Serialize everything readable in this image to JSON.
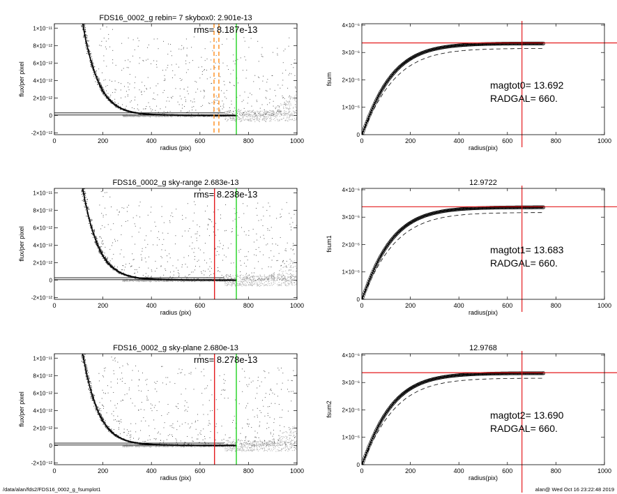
{
  "footer": {
    "path": "/data/alan/fds2/FDS16_0002_g_fsumplot1",
    "stamp": "alan@  Wed Oct 16 23:22:48 2019"
  },
  "colors": {
    "sky_line": "#ff8c1a",
    "red_line": "#e41a1c",
    "green_line": "#1fd31f",
    "profile": "#000000",
    "scatter_dark": "#333333",
    "scatter_light": "#aaaaaa"
  },
  "chart_data": [
    {
      "type": "scatter",
      "panel": "left-1",
      "title": "FDS16_0002_g rebin= 7    skybox0:  2.901e-13",
      "annotation": "rms= 8.187e-13",
      "xlabel": "radius (pix)",
      "ylabel": "flux/per pixel",
      "xlim": [
        0,
        1000
      ],
      "ylim": [
        -2.2e-12,
        1.05e-11
      ],
      "xticks": [
        0,
        200,
        400,
        600,
        800,
        1000
      ],
      "yticks": [
        {
          "value": -2e-12,
          "label": "-2×10⁻¹²"
        },
        {
          "value": 0,
          "label": "0"
        },
        {
          "value": 2e-12,
          "label": "2×10⁻¹²"
        },
        {
          "value": 4e-12,
          "label": "4×10⁻¹²"
        },
        {
          "value": 6e-12,
          "label": "6×10⁻¹²"
        },
        {
          "value": 8e-12,
          "label": "8×10⁻¹²"
        },
        {
          "value": 1e-11,
          "label": "1×10⁻¹¹"
        }
      ],
      "profile": {
        "x": [
          120,
          140,
          160,
          180,
          200,
          230,
          260,
          300,
          350,
          400,
          500,
          600,
          700,
          750
        ],
        "y": [
          1e-11,
          7.4e-12,
          5.4e-12,
          3.9e-12,
          2.8e-12,
          1.7e-12,
          1.05e-12,
          5.5e-13,
          2.6e-13,
          1.4e-13,
          6e-14,
          3e-14,
          2e-14,
          1.5e-14
        ]
      },
      "sky_band": [
        2.9e-13,
        5e-14
      ],
      "vlines": [
        {
          "x": 658,
          "color": "#ff8c1a",
          "style": "dashed"
        },
        {
          "x": 678,
          "color": "#ff8c1a",
          "style": "dashed"
        },
        {
          "x": 750,
          "color": "#1fd31f",
          "style": "solid"
        }
      ]
    },
    {
      "type": "line",
      "panel": "right-1",
      "title": "",
      "annotation_lines": [
        "magtot0=  13.692",
        "RADGAL=     660."
      ],
      "xlabel": "radius(pix)",
      "ylabel": "fsum",
      "xlim": [
        0,
        1000
      ],
      "ylim": [
        0,
        4.05e-06
      ],
      "xticks": [
        0,
        200,
        400,
        600,
        800,
        1000
      ],
      "yticks": [
        {
          "value": 0,
          "label": "0"
        },
        {
          "value": 1e-06,
          "label": "1×10⁻⁶"
        },
        {
          "value": 2e-06,
          "label": "2×10⁻⁶"
        },
        {
          "value": 3e-06,
          "label": "3×10⁻⁶"
        },
        {
          "value": 4e-06,
          "label": "4×10⁻⁶"
        }
      ],
      "asymptote": 3.33e-06,
      "dashed_asymptote": 3.15e-06,
      "radius_scale": 95,
      "curve_end": 750,
      "hline": 3.35e-06,
      "vline": 660
    },
    {
      "type": "scatter",
      "panel": "left-2",
      "title": "FDS16_0002_g sky-range  2.683e-13",
      "annotation": "rms= 8.238e-13",
      "xlabel": "radius (pix)",
      "ylabel": "flux/per pixel",
      "xlim": [
        0,
        1000
      ],
      "ylim": [
        -2.2e-12,
        1.05e-11
      ],
      "xticks": [
        0,
        200,
        400,
        600,
        800,
        1000
      ],
      "yticks": [
        {
          "value": -2e-12,
          "label": "-2×10⁻¹²"
        },
        {
          "value": 0,
          "label": "0"
        },
        {
          "value": 2e-12,
          "label": "2×10⁻¹²"
        },
        {
          "value": 4e-12,
          "label": "4×10⁻¹²"
        },
        {
          "value": 6e-12,
          "label": "6×10⁻¹²"
        },
        {
          "value": 8e-12,
          "label": "8×10⁻¹²"
        },
        {
          "value": 1e-11,
          "label": "1×10⁻¹¹"
        }
      ],
      "profile": {
        "x": [
          120,
          140,
          160,
          180,
          200,
          230,
          260,
          300,
          350,
          400,
          500,
          600,
          700,
          750
        ],
        "y": [
          1e-11,
          7.4e-12,
          5.4e-12,
          3.9e-12,
          2.8e-12,
          1.7e-12,
          1.05e-12,
          5.5e-13,
          2.6e-13,
          1.4e-13,
          6e-14,
          3e-14,
          2e-14,
          1.5e-14
        ]
      },
      "sky_band": [
        2.68e-13,
        5e-14
      ],
      "vlines": [
        {
          "x": 660,
          "color": "#e41a1c",
          "style": "solid"
        },
        {
          "x": 750,
          "color": "#1fd31f",
          "style": "solid"
        }
      ]
    },
    {
      "type": "line",
      "panel": "right-2",
      "title": "12.9722",
      "annotation_lines": [
        "magtot1=  13.683",
        "RADGAL=     660."
      ],
      "xlabel": "radius(pix)",
      "ylabel": "fsum1",
      "xlim": [
        0,
        1000
      ],
      "ylim": [
        0,
        4.05e-06
      ],
      "xticks": [
        0,
        200,
        400,
        600,
        800,
        1000
      ],
      "yticks": [
        {
          "value": 0,
          "label": "0"
        },
        {
          "value": 1e-06,
          "label": "1×10⁻⁶"
        },
        {
          "value": 2e-06,
          "label": "2×10⁻⁶"
        },
        {
          "value": 3e-06,
          "label": "3×10⁻⁶"
        },
        {
          "value": 4e-06,
          "label": "4×10⁻⁶"
        }
      ],
      "asymptote": 3.36e-06,
      "dashed_asymptote": 3.17e-06,
      "radius_scale": 95,
      "curve_end": 750,
      "hline": 3.38e-06,
      "vline": 660
    },
    {
      "type": "scatter",
      "panel": "left-3",
      "title": "FDS16_0002_g sky-plane  2.680e-13",
      "annotation": "rms= 8.278e-13",
      "xlabel": "radius (pix)",
      "ylabel": "flux/per pixel",
      "xlim": [
        0,
        1000
      ],
      "ylim": [
        -2.2e-12,
        1.05e-11
      ],
      "xticks": [
        0,
        200,
        400,
        600,
        800,
        1000
      ],
      "yticks": [
        {
          "value": -2e-12,
          "label": "-2×10⁻¹²"
        },
        {
          "value": 0,
          "label": "0"
        },
        {
          "value": 2e-12,
          "label": "2×10⁻¹²"
        },
        {
          "value": 4e-12,
          "label": "4×10⁻¹²"
        },
        {
          "value": 6e-12,
          "label": "6×10⁻¹²"
        },
        {
          "value": 8e-12,
          "label": "8×10⁻¹²"
        },
        {
          "value": 1e-11,
          "label": "1×10⁻¹¹"
        }
      ],
      "profile": {
        "x": [
          120,
          140,
          160,
          180,
          200,
          230,
          260,
          300,
          350,
          400,
          500,
          600,
          700,
          750
        ],
        "y": [
          1e-11,
          7.4e-12,
          5.4e-12,
          3.9e-12,
          2.8e-12,
          1.7e-12,
          1.05e-12,
          5.5e-13,
          2.6e-13,
          1.4e-13,
          6e-14,
          3e-14,
          2e-14,
          1.5e-14
        ]
      },
      "sky_band": [
        2.68e-13,
        5e-14
      ],
      "vlines": [
        {
          "x": 660,
          "color": "#e41a1c",
          "style": "solid"
        },
        {
          "x": 750,
          "color": "#1fd31f",
          "style": "solid"
        }
      ]
    },
    {
      "type": "line",
      "panel": "right-3",
      "title": "12.9768",
      "annotation_lines": [
        "magtot2=  13.690",
        "RADGAL=     660."
      ],
      "xlabel": "radius(pix)",
      "ylabel": "fsum2",
      "xlim": [
        0,
        1000
      ],
      "ylim": [
        0,
        4.05e-06
      ],
      "xticks": [
        0,
        200,
        400,
        600,
        800,
        1000
      ],
      "yticks": [
        {
          "value": 0,
          "label": "0"
        },
        {
          "value": 1e-06,
          "label": "1×10⁻⁶"
        },
        {
          "value": 2e-06,
          "label": "2×10⁻⁶"
        },
        {
          "value": 3e-06,
          "label": "3×10⁻⁶"
        },
        {
          "value": 4e-06,
          "label": "4×10⁻⁶"
        }
      ],
      "asymptote": 3.34e-06,
      "dashed_asymptote": 3.16e-06,
      "radius_scale": 95,
      "curve_end": 750,
      "hline": 3.36e-06,
      "vline": 660
    }
  ]
}
